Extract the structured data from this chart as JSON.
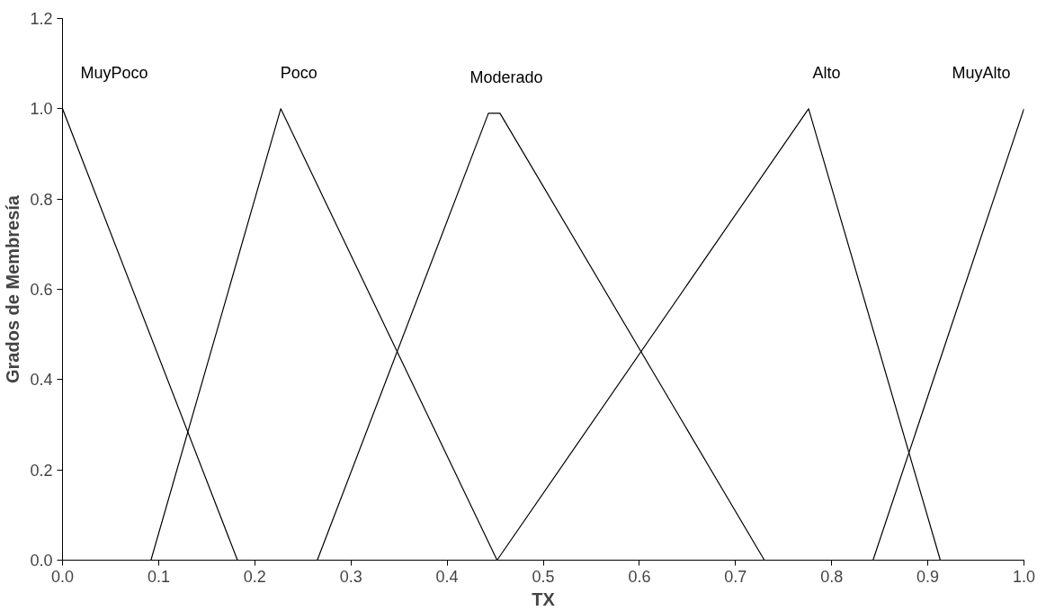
{
  "chart_data": {
    "type": "line",
    "xlabel": "TX",
    "ylabel": "Grados de Membresía",
    "xlim": [
      0,
      1
    ],
    "ylim": [
      0,
      1.2
    ],
    "xticks": [
      {
        "value": 0,
        "label": "0.0"
      },
      {
        "value": 0.1,
        "label": "0.1"
      },
      {
        "value": 0.2,
        "label": "0.2"
      },
      {
        "value": 0.3,
        "label": "0.3"
      },
      {
        "value": 0.4,
        "label": "0.4"
      },
      {
        "value": 0.5,
        "label": "0.5"
      },
      {
        "value": 0.6,
        "label": "0.6"
      },
      {
        "value": 0.7,
        "label": "0.7"
      },
      {
        "value": 0.8,
        "label": "0.8"
      },
      {
        "value": 0.9,
        "label": "0.9"
      },
      {
        "value": 1,
        "label": "1.0"
      }
    ],
    "yticks": [
      {
        "value": 0,
        "label": "0.0"
      },
      {
        "value": 0.2,
        "label": "0.2"
      },
      {
        "value": 0.4,
        "label": "0.4"
      },
      {
        "value": 0.6,
        "label": "0.6"
      },
      {
        "value": 0.8,
        "label": "0.8"
      },
      {
        "value": 1,
        "label": "1.0"
      },
      {
        "value": 1.2,
        "label": "1.2"
      }
    ],
    "grid": false,
    "legend": false,
    "marker": "none",
    "line_style": "solid",
    "series": [
      {
        "name": "MuyPoco",
        "color": "#000000",
        "x": [
          0,
          0.182,
          1
        ],
        "values": [
          1,
          0,
          0
        ]
      },
      {
        "name": "Poco",
        "color": "#000000",
        "x": [
          0,
          0.092,
          0.227,
          0.452,
          1
        ],
        "values": [
          0,
          0,
          1,
          0,
          0
        ]
      },
      {
        "name": "Moderado",
        "color": "#000000",
        "x": [
          0,
          0.265,
          0.443,
          0.455,
          0.73,
          1
        ],
        "values": [
          0,
          0,
          0.99,
          0.99,
          0,
          0
        ]
      },
      {
        "name": "Alto",
        "color": "#000000",
        "x": [
          0,
          0.452,
          0.776,
          0.913,
          1
        ],
        "values": [
          0,
          0,
          1,
          0,
          0
        ]
      },
      {
        "name": "MuyAlto",
        "color": "#000000",
        "x": [
          0,
          0.843,
          1
        ],
        "values": [
          0,
          0,
          1
        ]
      }
    ]
  }
}
